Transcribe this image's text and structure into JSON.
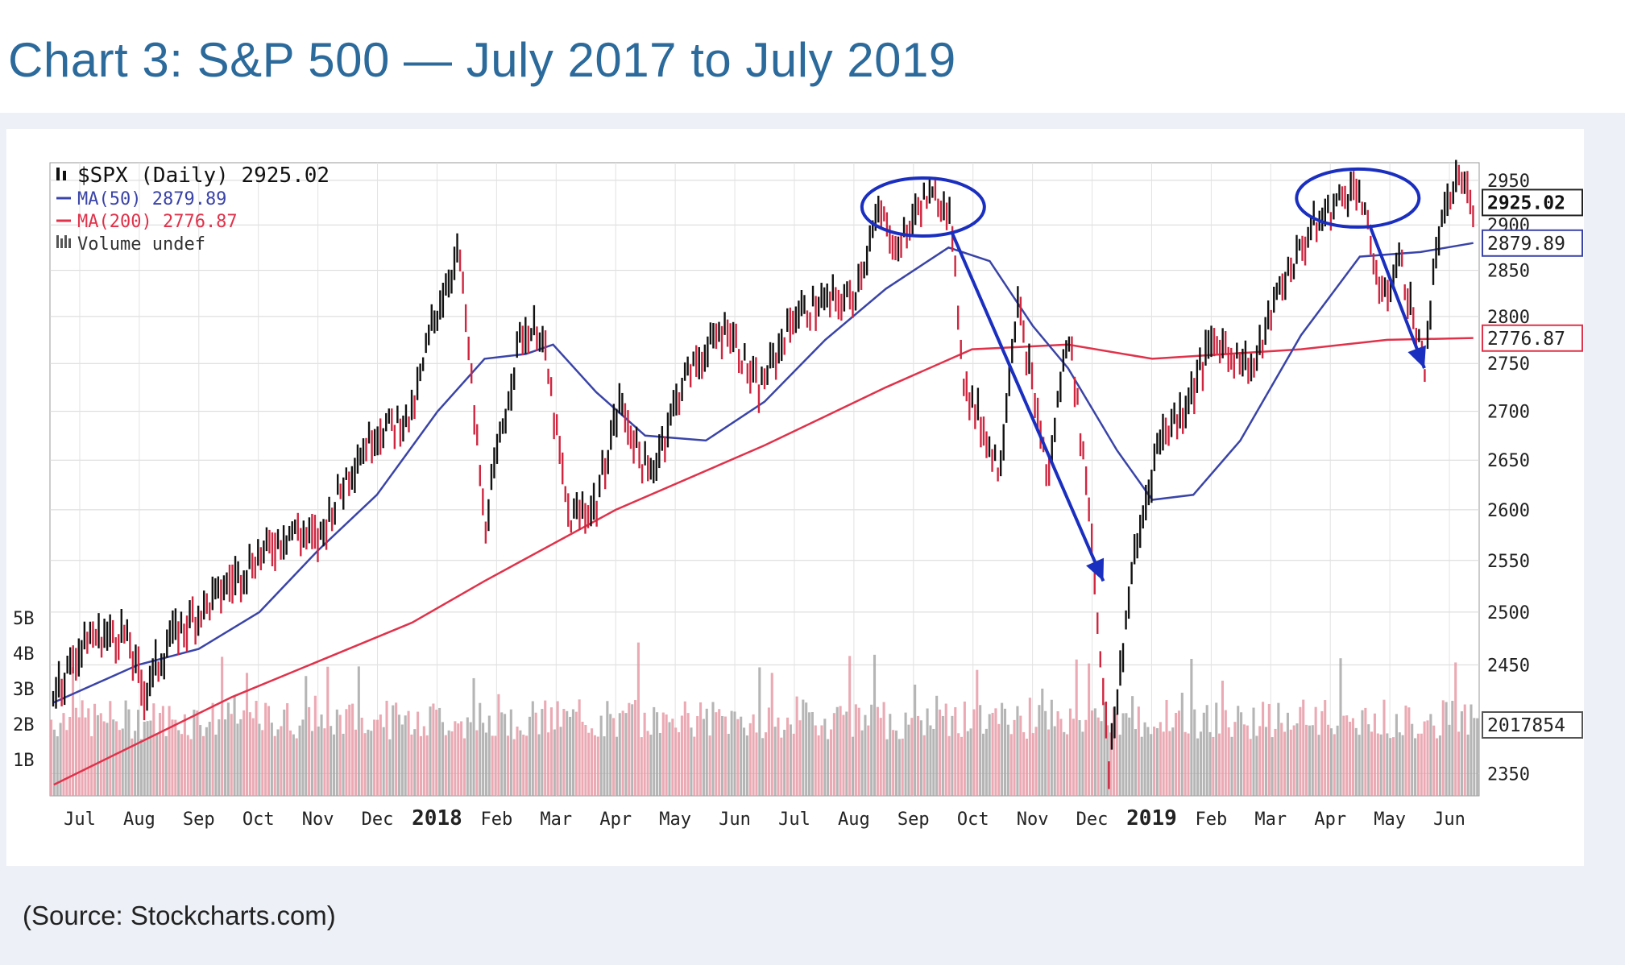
{
  "title": "Chart 3:  S&P 500 — July 2017 to July 2019",
  "source": "(Source: Stockcharts.com)",
  "colors": {
    "title": "#2b6a9b",
    "ma50": "#3a44a8",
    "ma200": "#e0324a",
    "up_bar": "#111111",
    "down_bar": "#d0253f",
    "annotation": "#1a2fbf",
    "volume_up": "#a8a8a8",
    "volume_down": "#e89aa6"
  },
  "chart_data": {
    "type": "line",
    "legend": {
      "ticker": "$SPX (Daily) 2925.02",
      "ma50": "MA(50) 2879.89",
      "ma200": "MA(200) 2776.87",
      "volume": "Volume undef"
    },
    "price_labels": {
      "last": "2925.02",
      "ma50": "2879.89",
      "ma200": "2776.87",
      "volume": "2017854"
    },
    "y_ticks": [
      "2950",
      "2900",
      "2850",
      "2800",
      "2750",
      "2700",
      "2650",
      "2600",
      "2550",
      "2500",
      "2450",
      "2350"
    ],
    "volume_ticks": [
      "5B",
      "4B",
      "3B",
      "2B",
      "1B"
    ],
    "x_labels": [
      {
        "label": "Jul",
        "bold": false
      },
      {
        "label": "Aug",
        "bold": false
      },
      {
        "label": "Sep",
        "bold": false
      },
      {
        "label": "Oct",
        "bold": false
      },
      {
        "label": "Nov",
        "bold": false
      },
      {
        "label": "Dec",
        "bold": false
      },
      {
        "label": "2018",
        "bold": true
      },
      {
        "label": "Feb",
        "bold": false
      },
      {
        "label": "Mar",
        "bold": false
      },
      {
        "label": "Apr",
        "bold": false
      },
      {
        "label": "May",
        "bold": false
      },
      {
        "label": "Jun",
        "bold": false
      },
      {
        "label": "Jul",
        "bold": false
      },
      {
        "label": "Aug",
        "bold": false
      },
      {
        "label": "Sep",
        "bold": false
      },
      {
        "label": "Oct",
        "bold": false
      },
      {
        "label": "Nov",
        "bold": false
      },
      {
        "label": "Dec",
        "bold": false
      },
      {
        "label": "2019",
        "bold": true
      },
      {
        "label": "Feb",
        "bold": false
      },
      {
        "label": "Mar",
        "bold": false
      },
      {
        "label": "Apr",
        "bold": false
      },
      {
        "label": "May",
        "bold": false
      },
      {
        "label": "Jun",
        "bold": false
      }
    ],
    "x_range": [
      "2017-07",
      "2019-07"
    ],
    "y_range": [
      2330,
      2970
    ],
    "scale": "log",
    "series": [
      {
        "name": "$SPX",
        "points": [
          [
            "2017-07-03",
            2425
          ],
          [
            "2017-07-20",
            2475
          ],
          [
            "2017-08-08",
            2480
          ],
          [
            "2017-08-18",
            2425
          ],
          [
            "2017-09-01",
            2475
          ],
          [
            "2017-09-15",
            2500
          ],
          [
            "2017-10-02",
            2530
          ],
          [
            "2017-10-16",
            2555
          ],
          [
            "2017-11-01",
            2580
          ],
          [
            "2017-11-15",
            2570
          ],
          [
            "2017-12-01",
            2640
          ],
          [
            "2017-12-15",
            2680
          ],
          [
            "2018-01-02",
            2695
          ],
          [
            "2018-01-12",
            2790
          ],
          [
            "2018-01-26",
            2872
          ],
          [
            "2018-02-08",
            2580
          ],
          [
            "2018-02-26",
            2780
          ],
          [
            "2018-03-09",
            2785
          ],
          [
            "2018-03-23",
            2590
          ],
          [
            "2018-04-06",
            2605
          ],
          [
            "2018-04-18",
            2710
          ],
          [
            "2018-05-03",
            2630
          ],
          [
            "2018-05-21",
            2735
          ],
          [
            "2018-06-12",
            2790
          ],
          [
            "2018-06-28",
            2720
          ],
          [
            "2018-07-16",
            2800
          ],
          [
            "2018-08-01",
            2815
          ],
          [
            "2018-08-15",
            2820
          ],
          [
            "2018-08-29",
            2915
          ],
          [
            "2018-09-07",
            2872
          ],
          [
            "2018-09-20",
            2930
          ],
          [
            "2018-10-03",
            2925
          ],
          [
            "2018-10-11",
            2730
          ],
          [
            "2018-10-29",
            2640
          ],
          [
            "2018-11-07",
            2815
          ],
          [
            "2018-11-23",
            2630
          ],
          [
            "2018-12-03",
            2790
          ],
          [
            "2018-12-14",
            2600
          ],
          [
            "2018-12-24",
            2350
          ],
          [
            "2019-01-04",
            2530
          ],
          [
            "2019-01-18",
            2670
          ],
          [
            "2019-02-01",
            2705
          ],
          [
            "2019-02-15",
            2775
          ],
          [
            "2019-03-08",
            2745
          ],
          [
            "2019-03-20",
            2825
          ],
          [
            "2019-04-05",
            2890
          ],
          [
            "2019-04-23",
            2935
          ],
          [
            "2019-04-30",
            2945
          ],
          [
            "2019-05-13",
            2812
          ],
          [
            "2019-05-21",
            2865
          ],
          [
            "2019-06-03",
            2745
          ],
          [
            "2019-06-10",
            2885
          ],
          [
            "2019-06-20",
            2955
          ],
          [
            "2019-06-28",
            2925
          ]
        ]
      },
      {
        "name": "MA(50)",
        "points": [
          [
            "2017-07-03",
            2415
          ],
          [
            "2017-08-15",
            2450
          ],
          [
            "2017-09-15",
            2465
          ],
          [
            "2017-10-16",
            2500
          ],
          [
            "2017-11-15",
            2560
          ],
          [
            "2017-12-15",
            2615
          ],
          [
            "2018-01-15",
            2700
          ],
          [
            "2018-02-08",
            2755
          ],
          [
            "2018-03-01",
            2760
          ],
          [
            "2018-03-15",
            2770
          ],
          [
            "2018-04-06",
            2720
          ],
          [
            "2018-05-01",
            2675
          ],
          [
            "2018-06-01",
            2670
          ],
          [
            "2018-07-01",
            2710
          ],
          [
            "2018-08-01",
            2775
          ],
          [
            "2018-09-01",
            2830
          ],
          [
            "2018-10-03",
            2875
          ],
          [
            "2018-10-24",
            2860
          ],
          [
            "2018-11-15",
            2790
          ],
          [
            "2018-12-03",
            2745
          ],
          [
            "2018-12-28",
            2660
          ],
          [
            "2019-01-15",
            2610
          ],
          [
            "2019-02-05",
            2615
          ],
          [
            "2019-03-01",
            2670
          ],
          [
            "2019-04-01",
            2780
          ],
          [
            "2019-05-01",
            2865
          ],
          [
            "2019-06-01",
            2870
          ],
          [
            "2019-06-28",
            2880
          ]
        ]
      },
      {
        "name": "MA(200)",
        "points": [
          [
            "2017-07-03",
            2340
          ],
          [
            "2017-10-02",
            2420
          ],
          [
            "2018-01-02",
            2490
          ],
          [
            "2018-02-08",
            2530
          ],
          [
            "2018-04-16",
            2600
          ],
          [
            "2018-07-01",
            2665
          ],
          [
            "2018-09-01",
            2725
          ],
          [
            "2018-10-15",
            2765
          ],
          [
            "2018-12-03",
            2770
          ],
          [
            "2019-01-15",
            2755
          ],
          [
            "2019-04-01",
            2765
          ],
          [
            "2019-05-15",
            2775
          ],
          [
            "2019-06-28",
            2777
          ]
        ]
      }
    ],
    "annotations": [
      {
        "type": "circle",
        "label": "peak",
        "at": [
          "2018-09-20",
          2920
        ]
      },
      {
        "type": "circle",
        "label": "peak",
        "at": [
          "2019-04-30",
          2930
        ]
      },
      {
        "type": "arrow",
        "from": [
          "2018-10-05",
          2890
        ],
        "to": [
          "2018-12-21",
          2530
        ]
      },
      {
        "type": "arrow",
        "from": [
          "2019-05-06",
          2900
        ],
        "to": [
          "2019-06-03",
          2745
        ]
      }
    ]
  }
}
